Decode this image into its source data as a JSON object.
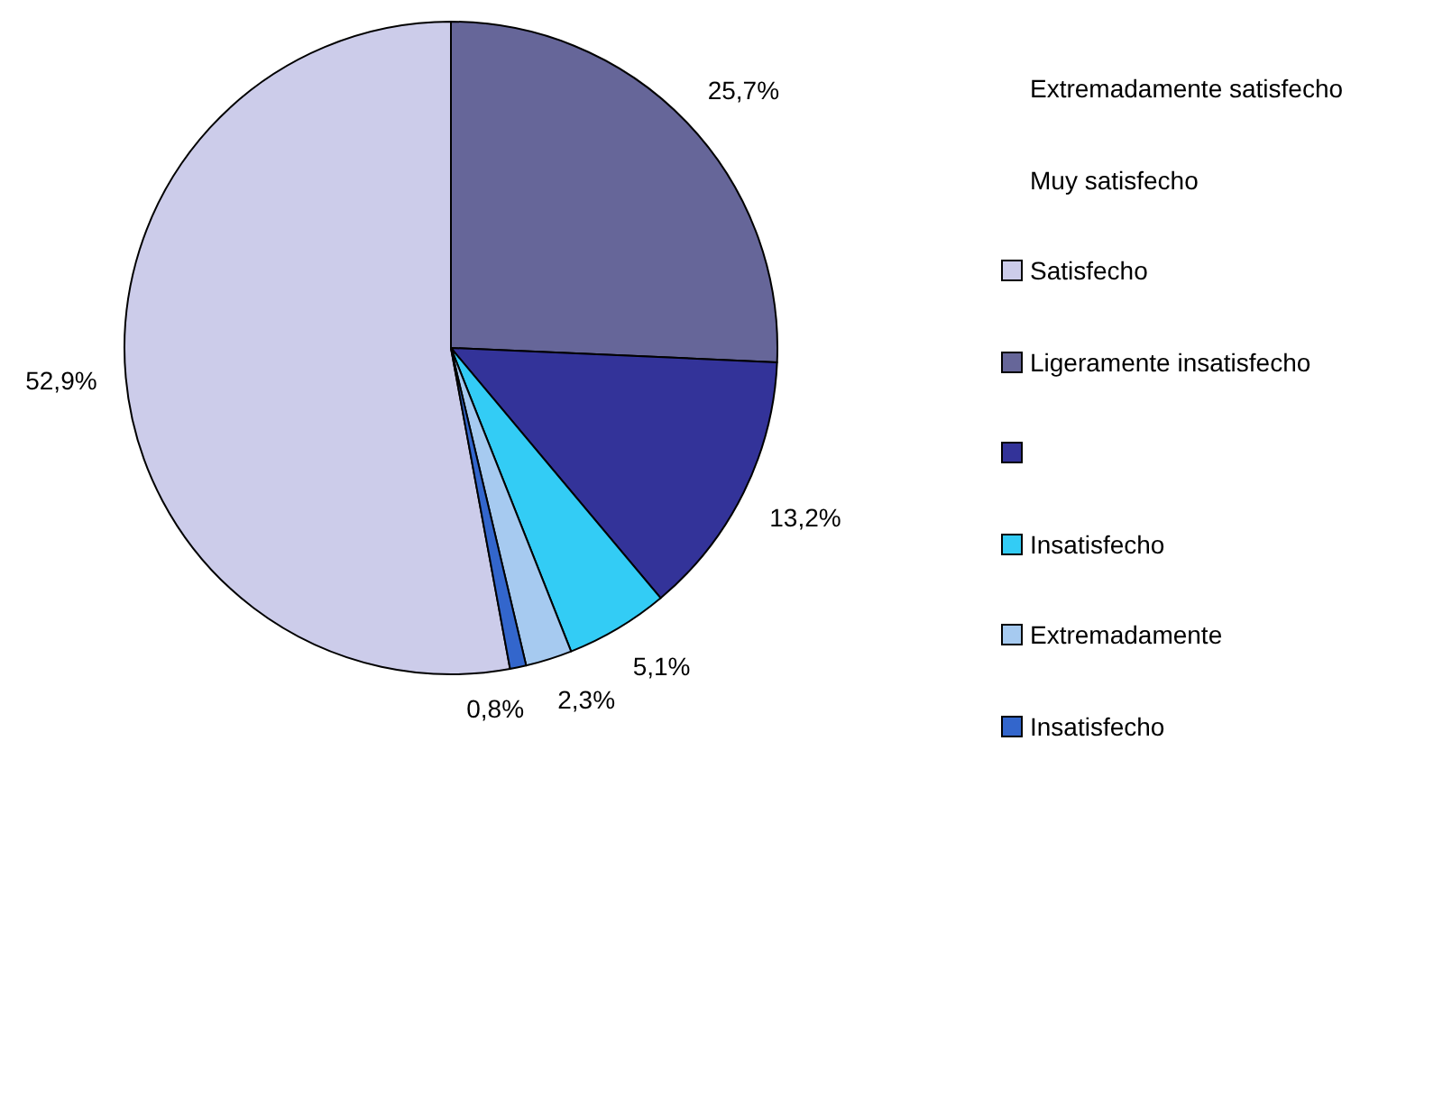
{
  "chart_data": {
    "type": "pie",
    "categories": [
      "Satisfecho",
      "Ligeramente insatisfecho",
      null,
      "Insatisfecho",
      "Extremadamente",
      "Insatisfecho"
    ],
    "values": [
      52.9,
      25.7,
      13.2,
      5.1,
      2.3,
      0.8
    ],
    "value_labels": [
      "52,9%",
      "25,7%",
      "13,2%",
      "5,1%",
      "2,3%",
      "0,8%"
    ],
    "colors": [
      "#ccccea",
      "#666699",
      "#333399",
      "#33ccf5",
      "#a6caf0",
      "#3366cc"
    ],
    "annotations": [
      "Extremadamente satisfecho",
      "Muy satisfecho"
    ],
    "legend": "right"
  }
}
